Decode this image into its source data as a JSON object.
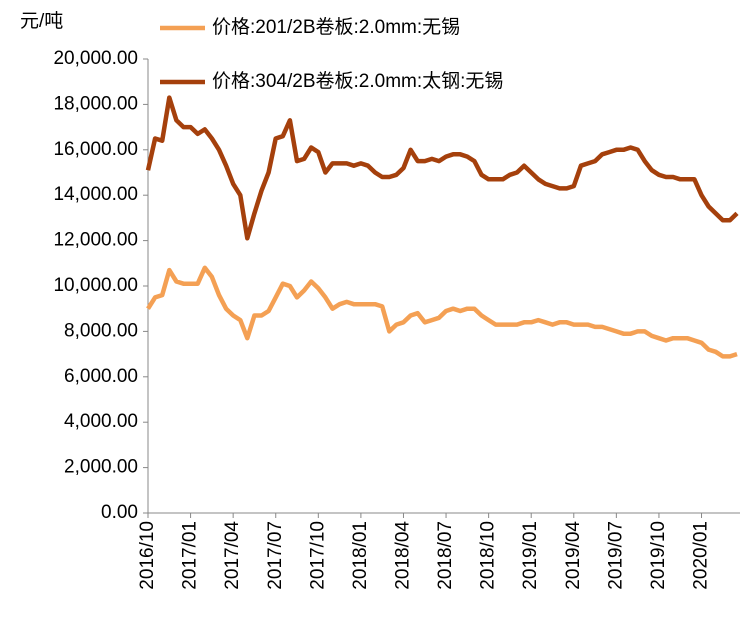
{
  "chart_data": {
    "type": "line",
    "y_axis_label": "元/吨",
    "categories": [
      "2016/10",
      null,
      null,
      null,
      null,
      null,
      "2017/01",
      null,
      null,
      null,
      null,
      null,
      "2017/04",
      null,
      null,
      null,
      null,
      null,
      "2017/07",
      null,
      null,
      null,
      null,
      null,
      "2017/10",
      null,
      null,
      null,
      null,
      null,
      "2018/01",
      null,
      null,
      null,
      null,
      null,
      "2018/04",
      null,
      null,
      null,
      null,
      null,
      "2018/07",
      null,
      null,
      null,
      null,
      null,
      "2018/10",
      null,
      null,
      null,
      null,
      null,
      "2019/01",
      null,
      null,
      null,
      null,
      null,
      "2019/04",
      null,
      null,
      null,
      null,
      null,
      "2019/07",
      null,
      null,
      null,
      null,
      null,
      "2019/10",
      null,
      null,
      null,
      null,
      null,
      "2020/01",
      null,
      null,
      null,
      null,
      null
    ],
    "series": [
      {
        "name": "价格:201/2B卷板:2.0mm:无锡",
        "color": "#f4a054",
        "values": [
          9000,
          9500,
          9600,
          10700,
          10200,
          10100,
          10100,
          10100,
          10800,
          10400,
          9600,
          9000,
          8700,
          8500,
          7700,
          8700,
          8700,
          8900,
          9500,
          10100,
          10000,
          9500,
          9800,
          10200,
          9900,
          9500,
          9000,
          9200,
          9300,
          9200,
          9200,
          9200,
          9200,
          9100,
          8000,
          8300,
          8400,
          8700,
          8800,
          8400,
          8500,
          8600,
          8900,
          9000,
          8900,
          9000,
          9000,
          8700,
          8500,
          8300,
          8300,
          8300,
          8300,
          8400,
          8400,
          8500,
          8400,
          8300,
          8400,
          8400,
          8300,
          8300,
          8300,
          8200,
          8200,
          8100,
          8000,
          7900,
          7900,
          8000,
          8000,
          7800,
          7700,
          7600,
          7700,
          7700,
          7700,
          7600,
          7500,
          7200,
          7100,
          6900,
          6900,
          7000
        ]
      },
      {
        "name": "价格:304/2B卷板:2.0mm:太钢:无锡",
        "color": "#a5400c",
        "values": [
          15100,
          16500,
          16400,
          18300,
          17300,
          17000,
          17000,
          16700,
          16900,
          16500,
          16000,
          15300,
          14500,
          14000,
          12100,
          13200,
          14200,
          15000,
          16500,
          16600,
          17300,
          15500,
          15600,
          16100,
          15900,
          15000,
          15400,
          15400,
          15400,
          15300,
          15400,
          15300,
          15000,
          14800,
          14800,
          14900,
          15200,
          16000,
          15500,
          15500,
          15600,
          15500,
          15700,
          15800,
          15800,
          15700,
          15500,
          14900,
          14700,
          14700,
          14700,
          14900,
          15000,
          15300,
          15000,
          14700,
          14500,
          14400,
          14300,
          14300,
          14400,
          15300,
          15400,
          15500,
          15800,
          15900,
          16000,
          16000,
          16100,
          16000,
          15500,
          15100,
          14900,
          14800,
          14800,
          14700,
          14700,
          14700,
          14000,
          13500,
          13200,
          12900,
          12900,
          13200
        ]
      }
    ],
    "ylim": [
      0,
      20000
    ],
    "yticks": [
      {
        "value": 0,
        "label": "0.00"
      },
      {
        "value": 2000,
        "label": "2,000.00"
      },
      {
        "value": 4000,
        "label": "4,000.00"
      },
      {
        "value": 6000,
        "label": "6,000.00"
      },
      {
        "value": 8000,
        "label": "8,000.00"
      },
      {
        "value": 10000,
        "label": "10,000.00"
      },
      {
        "value": 12000,
        "label": "12,000.00"
      },
      {
        "value": 14000,
        "label": "14,000.00"
      },
      {
        "value": 16000,
        "label": "16,000.00"
      },
      {
        "value": 18000,
        "label": "18,000.00"
      },
      {
        "value": 20000,
        "label": "20,000.00"
      }
    ],
    "grid": false
  }
}
